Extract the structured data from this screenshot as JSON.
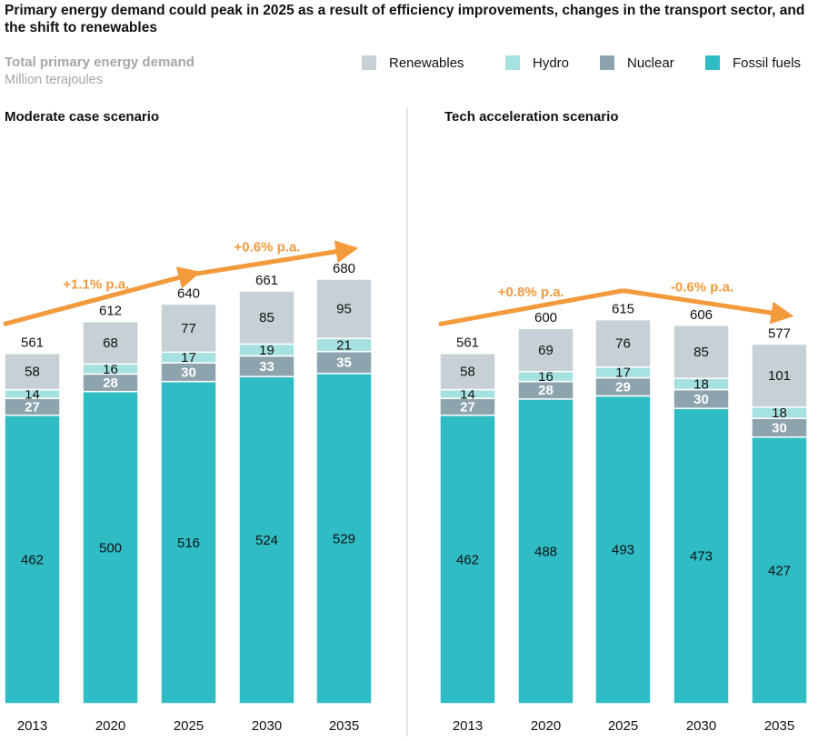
{
  "title": "Primary energy demand could peak in 2025 as a result of efficiency improvements, changes in the transport sector, and the shift to renewables",
  "subtitle": "Total primary energy demand",
  "unit": "Million terajoules",
  "legend": [
    {
      "label": "Renewables",
      "color": "#c6d0d5"
    },
    {
      "label": "Hydro",
      "color": "#a6e1e1"
    },
    {
      "label": "Nuclear",
      "color": "#8da3ae"
    },
    {
      "label": "Fossil fuels",
      "color": "#2fbcc5"
    }
  ],
  "chart_data": [
    {
      "type": "bar",
      "stacked": true,
      "title": "Moderate case scenario",
      "categories": [
        "2013",
        "2020",
        "2025",
        "2030",
        "2035"
      ],
      "totals": [
        561,
        612,
        640,
        661,
        680
      ],
      "series": [
        {
          "name": "Fossil fuels",
          "values": [
            462,
            500,
            516,
            524,
            529
          ]
        },
        {
          "name": "Nuclear",
          "values": [
            27,
            28,
            30,
            33,
            35
          ]
        },
        {
          "name": "Hydro",
          "values": [
            14,
            16,
            17,
            19,
            21
          ]
        },
        {
          "name": "Renewables",
          "values": [
            58,
            68,
            77,
            85,
            95
          ]
        }
      ],
      "annotations": [
        {
          "text": "+1.1% p.a.",
          "from": "2013",
          "to": "2025"
        },
        {
          "text": "+0.6% p.a.",
          "from": "2025",
          "to": "2035"
        }
      ]
    },
    {
      "type": "bar",
      "stacked": true,
      "title": "Tech acceleration scenario",
      "categories": [
        "2013",
        "2020",
        "2025",
        "2030",
        "2035"
      ],
      "totals": [
        561,
        600,
        615,
        606,
        577
      ],
      "series": [
        {
          "name": "Fossil fuels",
          "values": [
            462,
            488,
            493,
            473,
            427
          ]
        },
        {
          "name": "Nuclear",
          "values": [
            27,
            28,
            29,
            30,
            30
          ]
        },
        {
          "name": "Hydro",
          "values": [
            14,
            16,
            17,
            18,
            18
          ]
        },
        {
          "name": "Renewables",
          "values": [
            58,
            69,
            76,
            85,
            101
          ]
        }
      ],
      "annotations": [
        {
          "text": "+0.8% p.a.",
          "from": "2013",
          "to": "2025"
        },
        {
          "text": "-0.6% p.a.",
          "from": "2025",
          "to": "2035"
        }
      ]
    }
  ]
}
